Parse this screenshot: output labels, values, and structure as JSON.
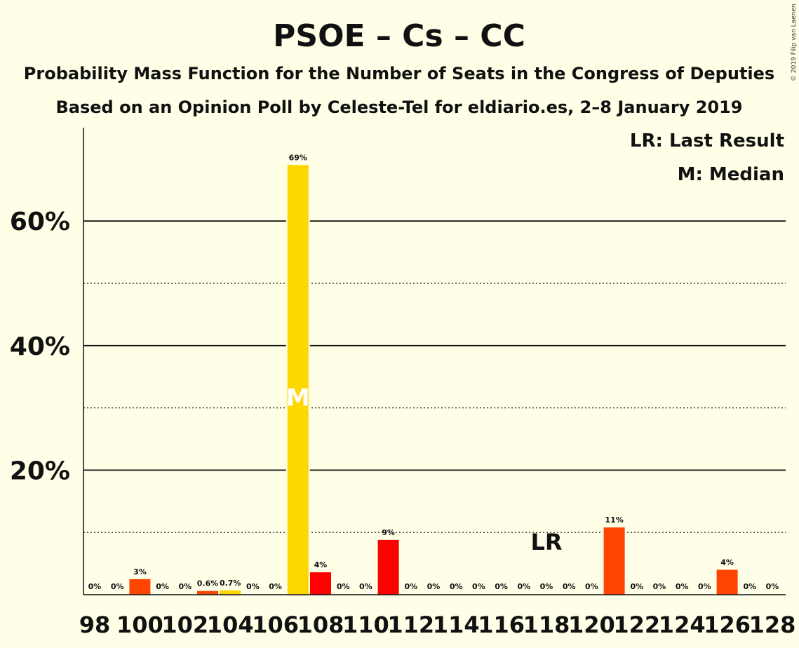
{
  "header": {
    "title": "PSOE – Cs – CC",
    "subtitle1": "Probability Mass Function for the Number of Seats in the Congress of Deputies",
    "subtitle2": "Based on an Opinion Poll by Celeste-Tel for eldiario.es, 2–8 January 2019",
    "copyright": "© 2019 Filip van Laenen"
  },
  "legend": {
    "lr": "LR: Last Result",
    "m": "M: Median"
  },
  "colors": {
    "background": "#FFFEE6",
    "psoe": "#FF0000",
    "cs": "#FF4500",
    "cc": "#FFD700",
    "orange": "#FF6A00"
  },
  "chart_data": {
    "type": "bar",
    "ylim": [
      0,
      0.75
    ],
    "yticks_major": [
      0.2,
      0.4,
      0.6
    ],
    "ytick_labels": [
      "20%",
      "40%",
      "60%"
    ],
    "yticks_minor": [
      0.1,
      0.3,
      0.5
    ],
    "xtick_labels": [
      "98",
      "100",
      "102",
      "104",
      "106",
      "108",
      "110",
      "112",
      "114",
      "116",
      "118",
      "120",
      "122",
      "124",
      "126",
      "128"
    ],
    "median_seat": 107,
    "median_label": "M",
    "last_result_seat": 118,
    "last_result_label": "LR",
    "bars": [
      {
        "seat": 98,
        "value": 0.0,
        "label": "0%",
        "color": "#FFD700"
      },
      {
        "seat": 99,
        "value": 0.0,
        "label": "0%",
        "color": "#FFD700"
      },
      {
        "seat": 100,
        "value": 0.025,
        "label": "3%",
        "color": "#FF4500"
      },
      {
        "seat": 101,
        "value": 0.0,
        "label": "0%",
        "color": "#FFD700"
      },
      {
        "seat": 102,
        "value": 0.0,
        "label": "0%",
        "color": "#FFD700"
      },
      {
        "seat": 103,
        "value": 0.006,
        "label": "0.6%",
        "color": "#FF4500"
      },
      {
        "seat": 104,
        "value": 0.007,
        "label": "0.7%",
        "color": "#FFD700"
      },
      {
        "seat": 105,
        "value": 0.0,
        "label": "0%",
        "color": "#FFD700"
      },
      {
        "seat": 106,
        "value": 0.0,
        "label": "0%",
        "color": "#FFD700"
      },
      {
        "seat": 107,
        "value": 0.69,
        "label": "69%",
        "color": "#FFD700"
      },
      {
        "seat": 108,
        "value": 0.036,
        "label": "4%",
        "color": "#FF0000"
      },
      {
        "seat": 109,
        "value": 0.0,
        "label": "0%",
        "color": "#FFD700"
      },
      {
        "seat": 110,
        "value": 0.0,
        "label": "0%",
        "color": "#FFD700"
      },
      {
        "seat": 111,
        "value": 0.088,
        "label": "9%",
        "color": "#FF0000"
      },
      {
        "seat": 112,
        "value": 0.0,
        "label": "0%",
        "color": "#FFD700"
      },
      {
        "seat": 113,
        "value": 0.0,
        "label": "0%",
        "color": "#FFD700"
      },
      {
        "seat": 114,
        "value": 0.0,
        "label": "0%",
        "color": "#FFD700"
      },
      {
        "seat": 115,
        "value": 0.0,
        "label": "0%",
        "color": "#FFD700"
      },
      {
        "seat": 116,
        "value": 0.0,
        "label": "0%",
        "color": "#FFD700"
      },
      {
        "seat": 117,
        "value": 0.0,
        "label": "0%",
        "color": "#FFD700"
      },
      {
        "seat": 118,
        "value": 0.0,
        "label": "0%",
        "color": "#FFD700"
      },
      {
        "seat": 119,
        "value": 0.0,
        "label": "0%",
        "color": "#FFD700"
      },
      {
        "seat": 120,
        "value": 0.0,
        "label": "0%",
        "color": "#FFD700"
      },
      {
        "seat": 121,
        "value": 0.108,
        "label": "11%",
        "color": "#FF4500"
      },
      {
        "seat": 122,
        "value": 0.0,
        "label": "0%",
        "color": "#FFD700"
      },
      {
        "seat": 123,
        "value": 0.0,
        "label": "0%",
        "color": "#FFD700"
      },
      {
        "seat": 124,
        "value": 0.0,
        "label": "0%",
        "color": "#FFD700"
      },
      {
        "seat": 125,
        "value": 0.0,
        "label": "0%",
        "color": "#FFD700"
      },
      {
        "seat": 126,
        "value": 0.04,
        "label": "4%",
        "color": "#FF4500"
      },
      {
        "seat": 127,
        "value": 0.0,
        "label": "0%",
        "color": "#FFD700"
      },
      {
        "seat": 128,
        "value": 0.0,
        "label": "0%",
        "color": "#FFD700"
      }
    ]
  }
}
